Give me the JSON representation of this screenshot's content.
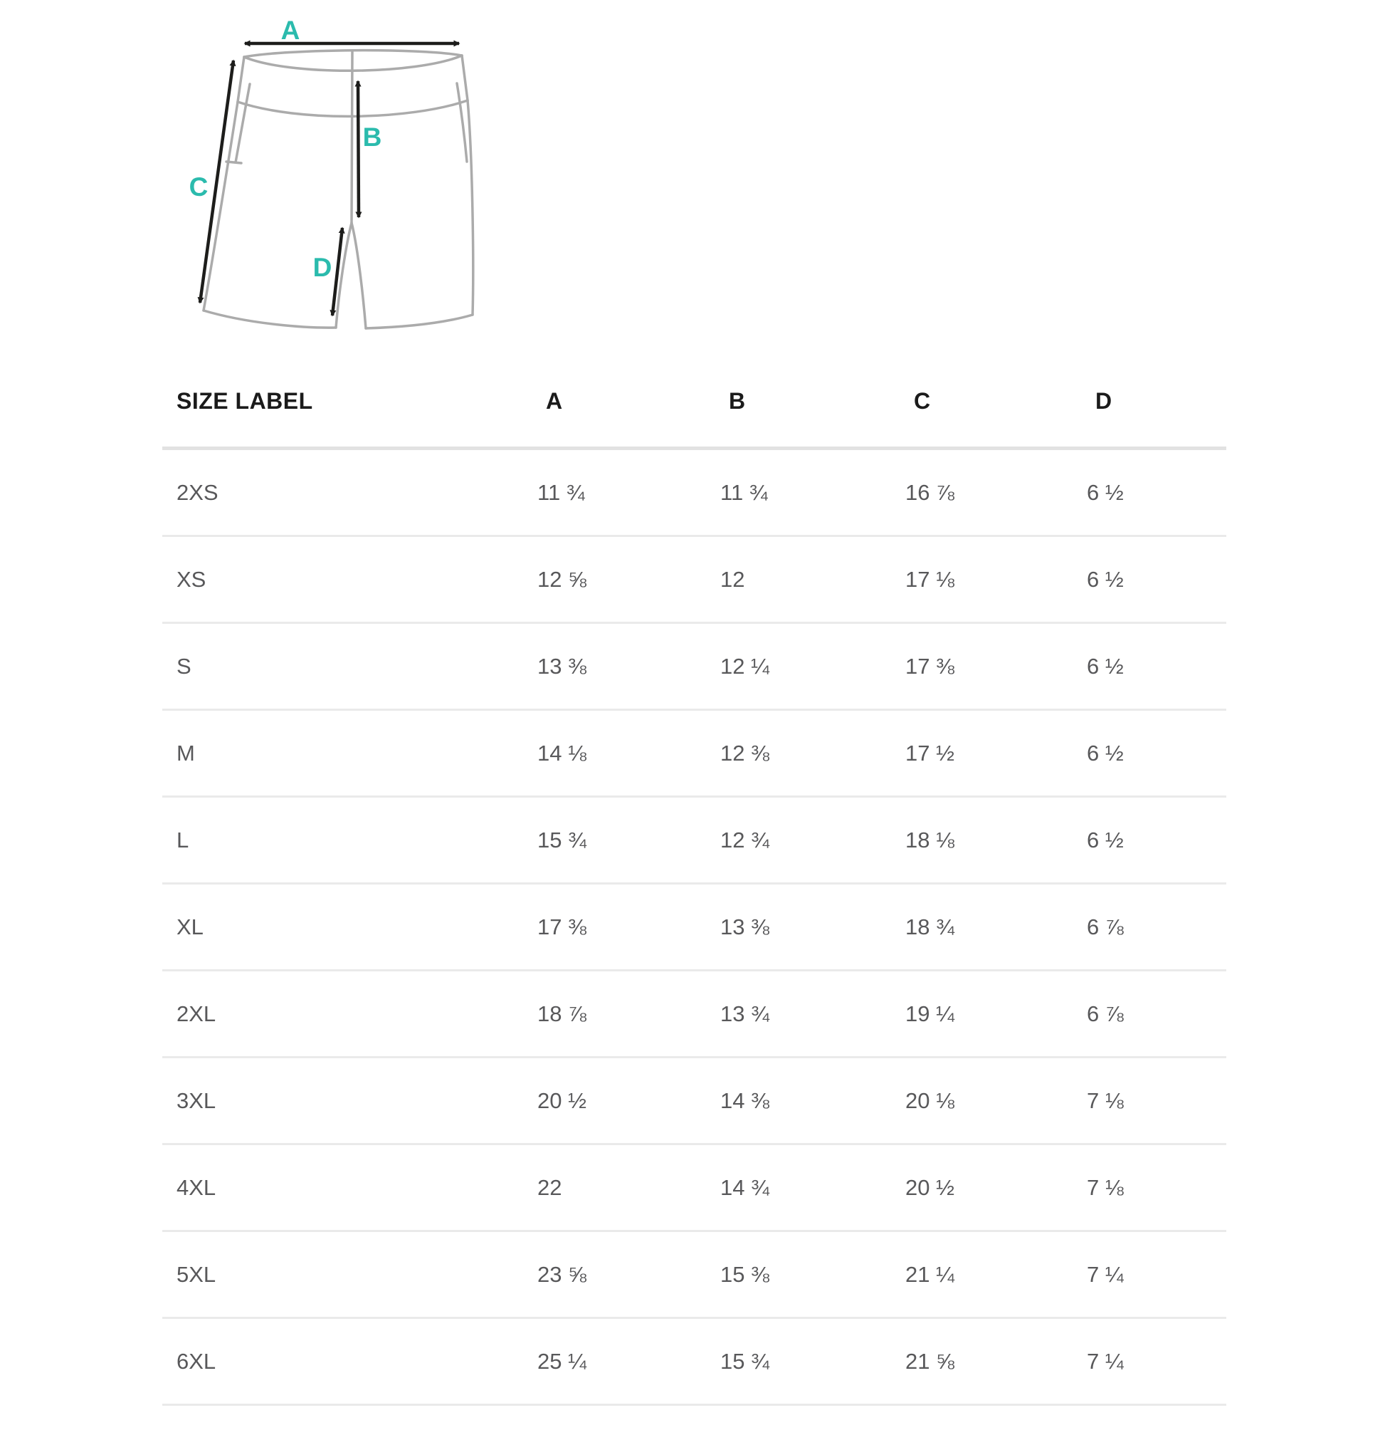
{
  "page": {
    "background": "#ffffff"
  },
  "diagram": {
    "description": "shorts-measurement-diagram",
    "label_color": "#2bbbad",
    "outline_color": "#ababab",
    "arrow_color": "#1d1d1b",
    "labels": {
      "a": "A",
      "b": "B",
      "c": "C",
      "d": "D"
    }
  },
  "table": {
    "headers": [
      "SIZE LABEL",
      "A",
      "B",
      "C",
      "D"
    ],
    "rows": [
      {
        "size": "2XS",
        "a": "11 ¾",
        "b": "11 ¾",
        "c": "16 ⅞",
        "d": "6 ½"
      },
      {
        "size": "XS",
        "a": "12 ⅝",
        "b": "12",
        "c": "17 ⅛",
        "d": "6 ½"
      },
      {
        "size": "S",
        "a": "13 ⅜",
        "b": "12 ¼",
        "c": "17 ⅜",
        "d": "6 ½"
      },
      {
        "size": "M",
        "a": "14 ⅛",
        "b": "12 ⅜",
        "c": "17 ½",
        "d": "6 ½"
      },
      {
        "size": "L",
        "a": "15 ¾",
        "b": "12 ¾",
        "c": "18 ⅛",
        "d": "6 ½"
      },
      {
        "size": "XL",
        "a": "17 ⅜",
        "b": "13 ⅜",
        "c": "18 ¾",
        "d": "6 ⅞"
      },
      {
        "size": "2XL",
        "a": "18 ⅞",
        "b": "13 ¾",
        "c": "19 ¼",
        "d": "6 ⅞"
      },
      {
        "size": "3XL",
        "a": "20 ½",
        "b": "14 ⅜",
        "c": "20 ⅛",
        "d": "7 ⅛"
      },
      {
        "size": "4XL",
        "a": "22",
        "b": "14 ¾",
        "c": "20 ½",
        "d": "7 ⅛"
      },
      {
        "size": "5XL",
        "a": "23 ⅝",
        "b": "15 ⅜",
        "c": "21 ¼",
        "d": "7 ¼"
      },
      {
        "size": "6XL",
        "a": "25 ¼",
        "b": "15 ¾",
        "c": "21 ⅝",
        "d": "7 ¼"
      }
    ]
  }
}
